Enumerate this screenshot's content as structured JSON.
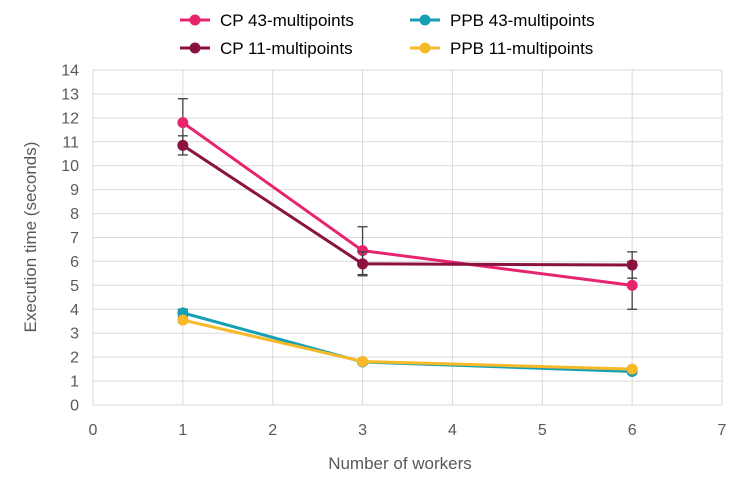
{
  "chart_data": {
    "type": "line",
    "title": "",
    "xlabel": "Number of workers",
    "ylabel": "Execution time (seconds)",
    "xlim": [
      0,
      7
    ],
    "ylim": [
      0,
      14
    ],
    "x_ticks": [
      0,
      1,
      2,
      3,
      4,
      5,
      6,
      7
    ],
    "y_ticks": [
      0,
      1,
      2,
      3,
      4,
      5,
      6,
      7,
      8,
      9,
      10,
      11,
      12,
      13,
      14
    ],
    "grid": true,
    "legend_position": "top",
    "series": [
      {
        "name": "CP 43-multipoints",
        "color": "#e8246f",
        "x": [
          1,
          3,
          6
        ],
        "values": [
          11.8,
          6.45,
          5.0
        ],
        "error": [
          1.0,
          1.0,
          1.0
        ]
      },
      {
        "name": "CP 11-multipoints",
        "color": "#8b1140",
        "x": [
          1,
          3,
          6
        ],
        "values": [
          10.85,
          5.9,
          5.85
        ],
        "error": [
          0.4,
          0.5,
          0.55
        ]
      },
      {
        "name": "PPB 43-multipoints",
        "color": "#15a0b5",
        "x": [
          1,
          3,
          6
        ],
        "values": [
          3.85,
          1.8,
          1.4
        ],
        "error": [
          0.15,
          0.1,
          0.1
        ]
      },
      {
        "name": "PPB 11-multipoints",
        "color": "#f7b928",
        "x": [
          1,
          3,
          6
        ],
        "values": [
          3.55,
          1.82,
          1.5
        ],
        "error": [
          0.1,
          0.08,
          0.08
        ]
      }
    ]
  }
}
